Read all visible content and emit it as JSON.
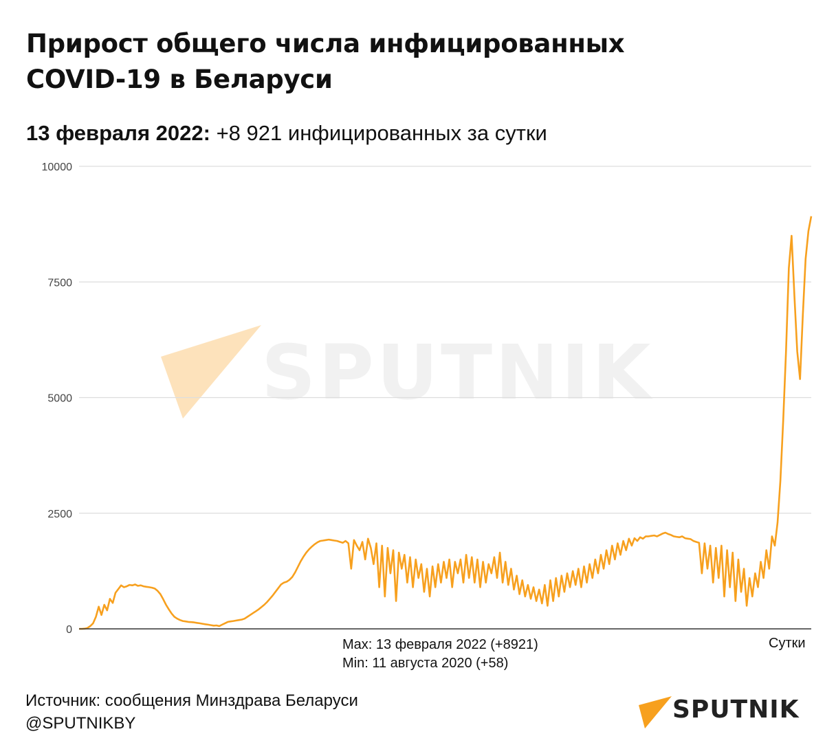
{
  "header": {
    "title_line1": "Прирост общего числа инфицированных",
    "title_line2": "COVID-19 в Беларуси",
    "subtitle_date": "13 февраля 2022:",
    "subtitle_value": " +8 921 инфицированных за сутки"
  },
  "annotations": {
    "max": "Max: 13 февраля 2022 (+8921)",
    "min": "Min: 11 августа 2020 (+58)"
  },
  "footer": {
    "source": "Источник: сообщения Минздрава Беларуси",
    "handle": "@SPUTNIKBY"
  },
  "brand": {
    "logo_text": "SPUTNIK",
    "watermark_text": "SPUTNIK",
    "accent": "#f7a01e"
  },
  "chart_data": {
    "type": "line",
    "title": "",
    "xlabel": "Сутки",
    "ylabel": "",
    "ylim": [
      0,
      10000
    ],
    "yticks": [
      "0",
      "2500",
      "5000",
      "7500",
      "10000"
    ],
    "grid": true,
    "legend": "none",
    "x_unit": "day index (first reported day = 0, last = 13 февраля 2022)",
    "series": [
      {
        "color": "#f7a01e",
        "values": [
          0,
          0,
          5,
          20,
          60,
          120,
          260,
          480,
          300,
          520,
          400,
          650,
          560,
          780,
          860,
          940,
          900,
          920,
          950,
          940,
          960,
          930,
          940,
          920,
          910,
          900,
          890,
          870,
          820,
          750,
          640,
          520,
          420,
          330,
          260,
          220,
          190,
          170,
          160,
          150,
          145,
          140,
          130,
          120,
          110,
          100,
          90,
          80,
          70,
          75,
          60,
          90,
          120,
          150,
          160,
          170,
          180,
          190,
          200,
          220,
          260,
          300,
          340,
          380,
          420,
          470,
          520,
          580,
          650,
          720,
          800,
          880,
          960,
          1000,
          1020,
          1060,
          1120,
          1220,
          1340,
          1460,
          1560,
          1650,
          1720,
          1780,
          1830,
          1870,
          1900,
          1910,
          1920,
          1930,
          1920,
          1910,
          1900,
          1880,
          1860,
          1900,
          1850,
          1300,
          1920,
          1800,
          1700,
          1880,
          1500,
          1950,
          1750,
          1400,
          1850,
          900,
          1800,
          700,
          1750,
          1200,
          1700,
          600,
          1650,
          1300,
          1600,
          1000,
          1550,
          900,
          1500,
          1100,
          1400,
          800,
          1300,
          700,
          1350,
          900,
          1400,
          1000,
          1450,
          1100,
          1500,
          900,
          1450,
          1200,
          1500,
          1000,
          1600,
          1100,
          1550,
          1000,
          1500,
          900,
          1450,
          1000,
          1400,
          1200,
          1550,
          1100,
          1650,
          1000,
          1450,
          950,
          1300,
          850,
          1150,
          750,
          1050,
          700,
          950,
          650,
          900,
          600,
          850,
          550,
          950,
          500,
          1050,
          600,
          1100,
          700,
          1150,
          800,
          1200,
          900,
          1250,
          950,
          1300,
          900,
          1350,
          1000,
          1400,
          1100,
          1500,
          1200,
          1600,
          1300,
          1700,
          1400,
          1800,
          1500,
          1850,
          1600,
          1900,
          1700,
          1950,
          1800,
          1960,
          1900,
          1980,
          1950,
          2000,
          2000,
          2010,
          2020,
          2000,
          2030,
          2060,
          2080,
          2050,
          2030,
          2000,
          1990,
          1980,
          2000,
          1960,
          1950,
          1940,
          1900,
          1880,
          1860,
          1200,
          1850,
          1300,
          1800,
          1000,
          1750,
          1100,
          1800,
          700,
          1700,
          900,
          1650,
          600,
          1500,
          800,
          1300,
          500,
          1100,
          700,
          1200,
          900,
          1450,
          1100,
          1700,
          1300,
          2000,
          1800,
          2300,
          3200,
          4500,
          6000,
          7800,
          8500,
          7200,
          6000,
          5400,
          6800,
          8000,
          8600,
          8921
        ]
      }
    ]
  }
}
